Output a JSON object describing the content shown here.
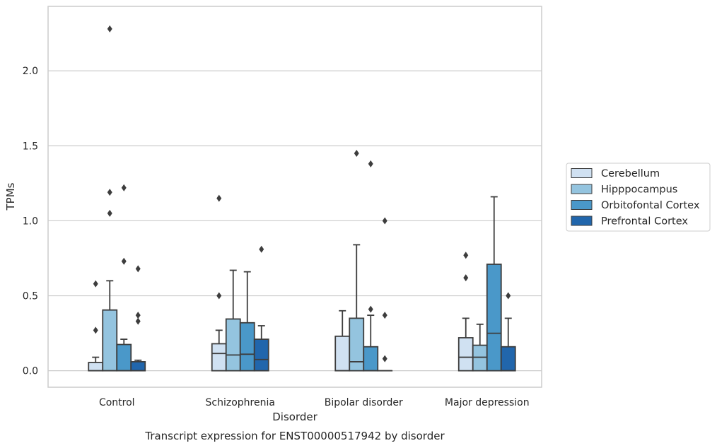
{
  "chart_data": {
    "type": "boxplot",
    "xlabel": "Disorder",
    "ylabel": "TPMs",
    "caption": "Transcript expression for ENST00000517942 by disorder",
    "ylim": [
      -0.11,
      2.43
    ],
    "yticks": [
      0.0,
      0.5,
      1.0,
      1.5,
      2.0
    ],
    "ytick_labels": [
      "0.0",
      "0.5",
      "1.0",
      "1.5",
      "2.0"
    ],
    "grid": "horizontal",
    "legend_position": "right",
    "categories": [
      "Control",
      "Schizophrenia",
      "Bipolar disorder",
      "Major depression"
    ],
    "series": [
      {
        "name": "Cerebellum",
        "color": "#d0e1f2",
        "boxes": [
          {
            "whislo": 0.0,
            "q1": 0.0,
            "med": 0.0,
            "q3": 0.055,
            "whishi": 0.09,
            "fliers": [
              0.27,
              0.58
            ]
          },
          {
            "whislo": 0.0,
            "q1": 0.0,
            "med": 0.115,
            "q3": 0.18,
            "whishi": 0.27,
            "fliers": [
              0.5,
              1.15
            ]
          },
          {
            "whislo": 0.0,
            "q1": 0.0,
            "med": 0.0,
            "q3": 0.23,
            "whishi": 0.4,
            "fliers": []
          },
          {
            "whislo": 0.0,
            "q1": 0.0,
            "med": 0.09,
            "q3": 0.22,
            "whishi": 0.35,
            "fliers": [
              0.62,
              0.77
            ]
          }
        ]
      },
      {
        "name": "Hipppocampus",
        "color": "#94c4df",
        "boxes": [
          {
            "whislo": 0.0,
            "q1": 0.0,
            "med": 0.0,
            "q3": 0.405,
            "whishi": 0.6,
            "fliers": [
              1.05,
              1.19,
              2.28
            ]
          },
          {
            "whislo": 0.0,
            "q1": 0.0,
            "med": 0.105,
            "q3": 0.345,
            "whishi": 0.67,
            "fliers": []
          },
          {
            "whislo": 0.0,
            "q1": 0.0,
            "med": 0.06,
            "q3": 0.35,
            "whishi": 0.84,
            "fliers": [
              1.45
            ]
          },
          {
            "whislo": 0.0,
            "q1": 0.0,
            "med": 0.09,
            "q3": 0.17,
            "whishi": 0.31,
            "fliers": []
          }
        ]
      },
      {
        "name": "Orbitofontal Cortex",
        "color": "#4a98c9",
        "boxes": [
          {
            "whislo": 0.0,
            "q1": 0.0,
            "med": 0.0,
            "q3": 0.175,
            "whishi": 0.21,
            "fliers": [
              0.73,
              1.22
            ]
          },
          {
            "whislo": 0.0,
            "q1": 0.0,
            "med": 0.11,
            "q3": 0.32,
            "whishi": 0.66,
            "fliers": []
          },
          {
            "whislo": 0.0,
            "q1": 0.0,
            "med": 0.0,
            "q3": 0.16,
            "whishi": 0.37,
            "fliers": [
              0.41,
              1.38
            ]
          },
          {
            "whislo": 0.0,
            "q1": 0.0,
            "med": 0.25,
            "q3": 0.71,
            "whishi": 1.16,
            "fliers": []
          }
        ]
      },
      {
        "name": "Prefrontal Cortex",
        "color": "#2166ac",
        "boxes": [
          {
            "whislo": 0.0,
            "q1": 0.0,
            "med": 0.0,
            "q3": 0.06,
            "whishi": 0.07,
            "fliers": [
              0.33,
              0.37,
              0.68
            ]
          },
          {
            "whislo": 0.0,
            "q1": 0.0,
            "med": 0.075,
            "q3": 0.21,
            "whishi": 0.3,
            "fliers": [
              0.81
            ]
          },
          {
            "whislo": 0.0,
            "q1": 0.0,
            "med": 0.0,
            "q3": 0.0,
            "whishi": 0.0,
            "fliers": [
              0.08,
              0.37,
              1.0
            ]
          },
          {
            "whislo": 0.0,
            "q1": 0.0,
            "med": 0.0,
            "q3": 0.16,
            "whishi": 0.35,
            "fliers": [
              0.5
            ]
          }
        ]
      }
    ]
  }
}
